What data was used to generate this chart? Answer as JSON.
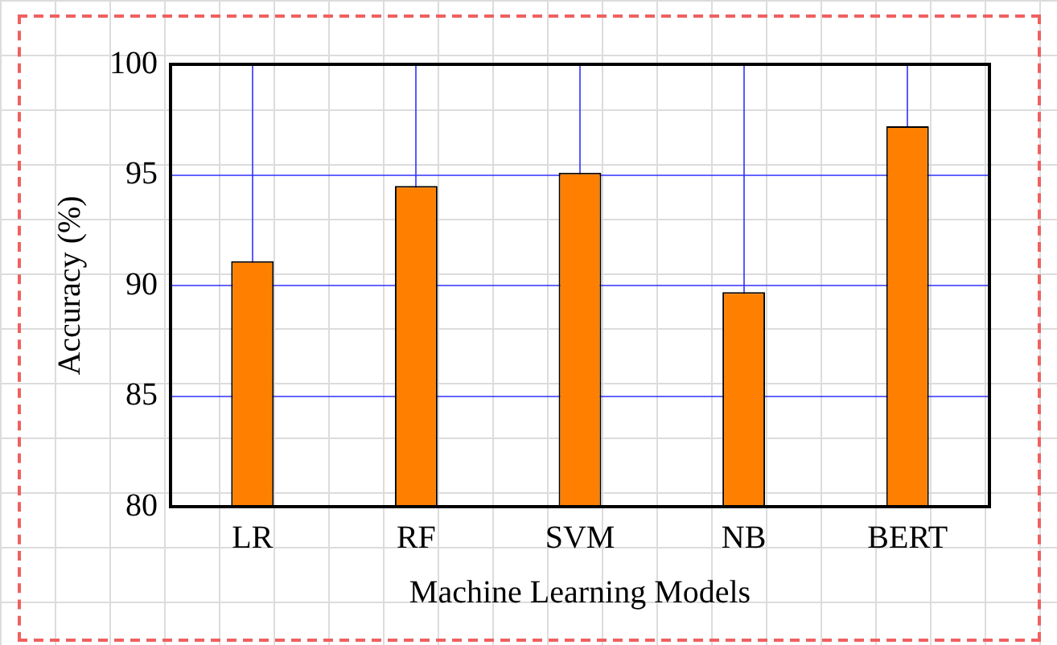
{
  "chart_data": {
    "type": "bar",
    "xlabel": "Machine Learning Models",
    "ylabel": "Accuracy (%)",
    "categories": [
      "LR",
      "RF",
      "SVM",
      "NB",
      "BERT"
    ],
    "values": [
      91.1,
      94.5,
      95.1,
      89.7,
      97.2
    ],
    "color": "#ff8000",
    "ylim": [
      80,
      100
    ],
    "yticks": [
      80,
      85,
      90,
      95,
      100
    ],
    "grid": true
  }
}
